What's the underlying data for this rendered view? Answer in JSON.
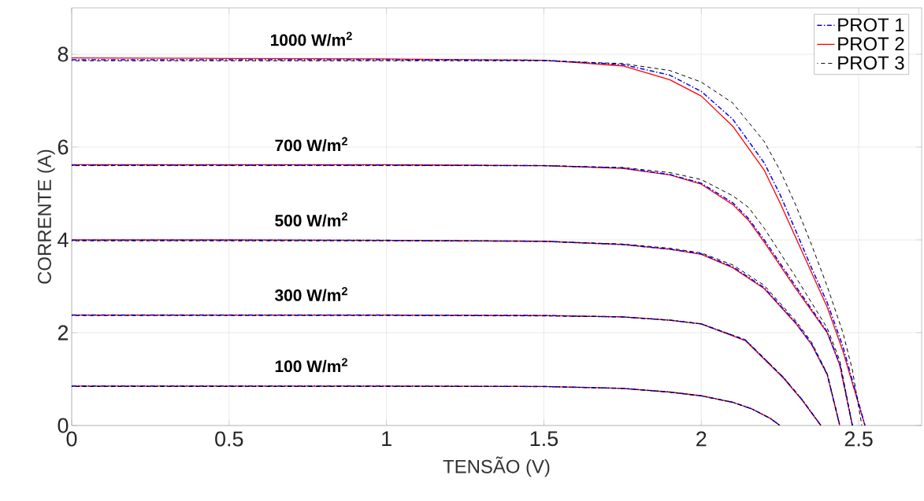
{
  "chart_data": {
    "type": "line",
    "xlabel": "TENSÃO (V)",
    "ylabel": "CORRENTE (A)",
    "xlim": [
      0,
      2.7
    ],
    "ylim": [
      0,
      9
    ],
    "xticks": [
      0,
      0.5,
      1,
      1.5,
      2,
      2.5
    ],
    "yticks": [
      0,
      2,
      4,
      6,
      8
    ],
    "grid": true,
    "legend": "top right",
    "annotations": [
      "1000 W/m$^{2}$",
      "700 W/m$^{2}$",
      "500 W/m$^{2}$",
      "300 W/m$^{2}$",
      "100 W/m$^{2}$"
    ],
    "series": [
      {
        "name": "PROT 1",
        "color": "#0000ff",
        "line_style": "dashdot",
        "x": [
          0,
          0.5,
          1,
          1.5,
          1.75,
          1.9,
          2.0,
          2.1,
          2.2,
          2.25,
          2.3,
          2.35,
          2.4,
          2.45,
          2.52
        ],
        "values": [
          7.88,
          7.88,
          7.88,
          7.87,
          7.78,
          7.55,
          7.2,
          6.6,
          5.66,
          4.98,
          4.2,
          3.4,
          2.65,
          1.7,
          0
        ]
      },
      {
        "color": "#0000ff",
        "line_style": "dashdot",
        "x": [
          0,
          0.5,
          1,
          1.5,
          1.75,
          1.9,
          2.0,
          2.1,
          2.15,
          2.2,
          2.3,
          2.4,
          2.44,
          2.48
        ],
        "values": [
          5.61,
          5.61,
          5.61,
          5.6,
          5.55,
          5.41,
          5.22,
          4.8,
          4.46,
          4.0,
          3.0,
          2.02,
          1.32,
          0
        ]
      },
      {
        "color": "#0000ff",
        "line_style": "dashdot",
        "x": [
          0,
          0.5,
          1,
          1.5,
          1.75,
          1.9,
          2.0,
          2.1,
          2.2,
          2.3,
          2.35,
          2.4,
          2.44
        ],
        "values": [
          3.99,
          3.99,
          3.99,
          3.97,
          3.9,
          3.8,
          3.7,
          3.42,
          2.97,
          2.22,
          1.76,
          1.1,
          0
        ]
      },
      {
        "color": "#0000ff",
        "line_style": "dashdot",
        "x": [
          0,
          0.5,
          1,
          1.5,
          1.75,
          1.9,
          2.0,
          2.14,
          2.26,
          2.32,
          2.38
        ],
        "values": [
          2.38,
          2.38,
          2.38,
          2.37,
          2.34,
          2.27,
          2.19,
          1.84,
          1.04,
          0.56,
          0
        ]
      },
      {
        "color": "#0000ff",
        "line_style": "dashdot",
        "x": [
          0,
          0.5,
          1,
          1.5,
          1.75,
          1.9,
          2.0,
          2.1,
          2.16,
          2.22,
          2.25
        ],
        "values": [
          0.85,
          0.85,
          0.85,
          0.84,
          0.8,
          0.72,
          0.64,
          0.5,
          0.36,
          0.15,
          0
        ]
      },
      {
        "name": "PROT 2",
        "color": "#ff0000",
        "line_style": "solid",
        "x": [
          0,
          0.5,
          1,
          1.5,
          1.75,
          1.9,
          2.0,
          2.1,
          2.2,
          2.25,
          2.3,
          2.35,
          2.4,
          2.45,
          2.52
        ],
        "values": [
          7.92,
          7.91,
          7.9,
          7.87,
          7.75,
          7.45,
          7.1,
          6.45,
          5.5,
          4.8,
          4.05,
          3.3,
          2.55,
          1.6,
          0
        ]
      },
      {
        "color": "#ff0000",
        "line_style": "solid",
        "x": [
          0,
          0.5,
          1,
          1.5,
          1.75,
          1.9,
          2.0,
          2.1,
          2.15,
          2.2,
          2.3,
          2.4,
          2.44,
          2.48
        ],
        "values": [
          5.62,
          5.62,
          5.62,
          5.6,
          5.54,
          5.4,
          5.2,
          4.76,
          4.42,
          3.95,
          2.95,
          2.0,
          1.3,
          0
        ]
      },
      {
        "color": "#ff0000",
        "line_style": "solid",
        "x": [
          0,
          0.5,
          1,
          1.5,
          1.75,
          1.9,
          2.0,
          2.1,
          2.2,
          2.3,
          2.35,
          2.4,
          2.44
        ],
        "values": [
          4.0,
          4.0,
          3.99,
          3.97,
          3.9,
          3.8,
          3.69,
          3.4,
          2.95,
          2.2,
          1.75,
          1.1,
          0
        ]
      },
      {
        "color": "#ff0000",
        "line_style": "solid",
        "x": [
          0,
          0.5,
          1,
          1.5,
          1.75,
          1.9,
          2.0,
          2.14,
          2.26,
          2.32,
          2.38
        ],
        "values": [
          2.38,
          2.38,
          2.38,
          2.37,
          2.34,
          2.27,
          2.19,
          1.83,
          1.03,
          0.55,
          0
        ]
      },
      {
        "color": "#ff0000",
        "line_style": "solid",
        "x": [
          0,
          0.5,
          1,
          1.5,
          1.75,
          1.9,
          2.0,
          2.1,
          2.16,
          2.22,
          2.25
        ],
        "values": [
          0.85,
          0.85,
          0.85,
          0.84,
          0.8,
          0.72,
          0.64,
          0.5,
          0.36,
          0.15,
          0
        ]
      },
      {
        "name": "PROT 3",
        "color": "#000000",
        "line_style": "dashed",
        "x": [
          0,
          0.5,
          1,
          1.5,
          1.75,
          1.9,
          2.0,
          2.1,
          2.2,
          2.25,
          2.3,
          2.35,
          2.4,
          2.45,
          2.48,
          2.51
        ],
        "values": [
          7.86,
          7.86,
          7.86,
          7.86,
          7.8,
          7.65,
          7.4,
          6.95,
          6.12,
          5.5,
          4.75,
          3.9,
          3.0,
          2.0,
          1.2,
          0
        ]
      },
      {
        "color": "#000000",
        "line_style": "dashed",
        "x": [
          0,
          0.5,
          1,
          1.5,
          1.75,
          1.9,
          2.0,
          2.1,
          2.15,
          2.2,
          2.3,
          2.4,
          2.44,
          2.48
        ],
        "values": [
          5.6,
          5.6,
          5.6,
          5.6,
          5.56,
          5.45,
          5.3,
          4.95,
          4.7,
          4.25,
          3.2,
          2.1,
          1.4,
          0
        ]
      },
      {
        "color": "#000000",
        "line_style": "dashed",
        "x": [
          0,
          0.5,
          1,
          1.5,
          1.75,
          1.9,
          2.0,
          2.1,
          2.2,
          2.3,
          2.35,
          2.4,
          2.44
        ],
        "values": [
          3.98,
          3.98,
          3.98,
          3.97,
          3.91,
          3.82,
          3.72,
          3.46,
          3.02,
          2.26,
          1.8,
          1.12,
          0
        ]
      },
      {
        "color": "#000000",
        "line_style": "dashed",
        "x": [
          0,
          0.5,
          1,
          1.5,
          1.75,
          1.9,
          2.0,
          2.14,
          2.26,
          2.32,
          2.38
        ],
        "values": [
          2.37,
          2.37,
          2.37,
          2.36,
          2.34,
          2.27,
          2.19,
          1.85,
          1.05,
          0.56,
          0
        ]
      },
      {
        "color": "#000000",
        "line_style": "dashed",
        "x": [
          0,
          0.5,
          1,
          1.5,
          1.75,
          1.9,
          2.0,
          2.1,
          2.16,
          2.22,
          2.25
        ],
        "values": [
          0.84,
          0.84,
          0.84,
          0.84,
          0.8,
          0.72,
          0.64,
          0.5,
          0.36,
          0.15,
          0
        ]
      }
    ]
  }
}
